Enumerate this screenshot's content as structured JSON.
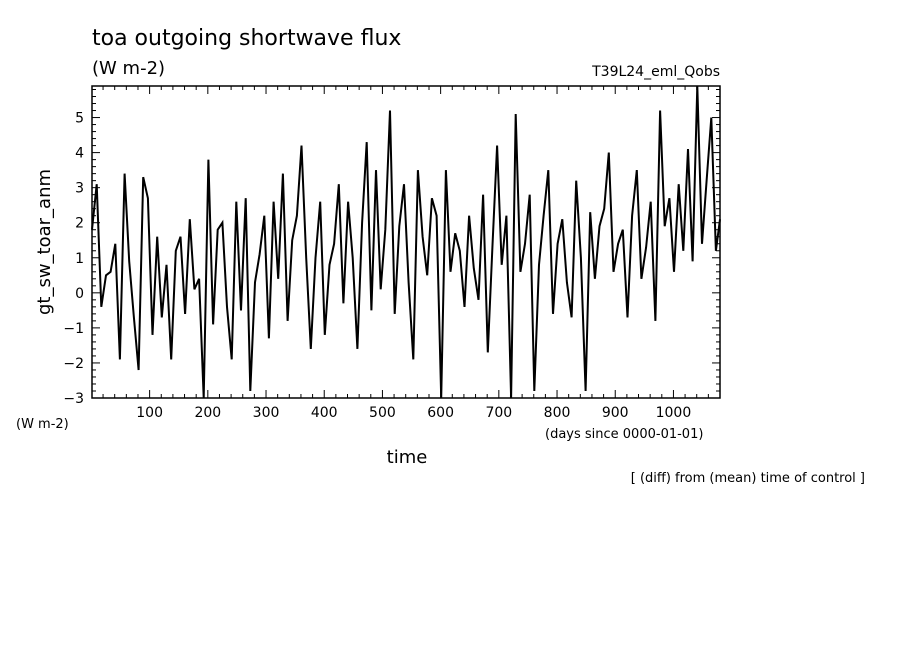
{
  "chart_data": {
    "type": "line",
    "title": "toa outgoing shortwave flux",
    "units": "(W m-2)",
    "experiment": "T39L24_eml_Qobs",
    "ylabel": "gt_sw_toar_anm",
    "ylabel_units": "(W m-2)",
    "xlabel": "time",
    "xlabel_units": "(days since 0000-01-01)",
    "footnote": "[ (diff) from (mean) time of control ]",
    "xlim": [
      1,
      1080
    ],
    "ylim": [
      -3,
      5.9
    ],
    "xticks_major": [
      100,
      200,
      300,
      400,
      500,
      600,
      700,
      800,
      900,
      1000
    ],
    "yticks_major": [
      -3,
      -2,
      -1,
      0,
      1,
      2,
      3,
      4,
      5
    ],
    "grid": false,
    "legend": "none",
    "line_color": "#000000",
    "series": [
      {
        "x": [
          1,
          9,
          17,
          25,
          33,
          41,
          49,
          57,
          65,
          73,
          81,
          89,
          97,
          105,
          113,
          121,
          129,
          137,
          145,
          153,
          161,
          169,
          177,
          185,
          193,
          201,
          209,
          217,
          225,
          233,
          241,
          249,
          257,
          265,
          273,
          281,
          289,
          297,
          305,
          313,
          321,
          329,
          337,
          345,
          353,
          361,
          369,
          377,
          385,
          393,
          401,
          409,
          417,
          425,
          433,
          441,
          449,
          457,
          465,
          473,
          481,
          489,
          497,
          505,
          513,
          521,
          529,
          537,
          545,
          553,
          561,
          569,
          577,
          585,
          593,
          601,
          609,
          617,
          625,
          633,
          641,
          649,
          657,
          665,
          673,
          681,
          689,
          697,
          705,
          713,
          721,
          729,
          737,
          745,
          753,
          761,
          769,
          777,
          785,
          793,
          801,
          809,
          817,
          825,
          833,
          841,
          849,
          857,
          865,
          873,
          881,
          889,
          897,
          905,
          913,
          921,
          929,
          937,
          945,
          953,
          961,
          969,
          977,
          985,
          993,
          1001,
          1009,
          1017,
          1025,
          1033,
          1041,
          1049,
          1057,
          1065,
          1073,
          1080
        ],
        "y": [
          1.8,
          3.1,
          -0.4,
          0.5,
          0.6,
          1.4,
          -1.9,
          3.4,
          0.9,
          -0.7,
          -2.2,
          3.3,
          2.7,
          -1.2,
          1.6,
          -0.7,
          0.8,
          -1.9,
          1.2,
          1.6,
          -0.6,
          2.1,
          0.1,
          0.4,
          -3.0,
          3.8,
          -0.9,
          1.8,
          2.0,
          -0.4,
          -1.9,
          2.6,
          -0.5,
          2.7,
          -2.8,
          0.3,
          1.1,
          2.2,
          -1.3,
          2.6,
          0.4,
          3.4,
          -0.8,
          1.5,
          2.2,
          4.2,
          1.0,
          -1.6,
          1.0,
          2.6,
          -1.2,
          0.8,
          1.4,
          3.1,
          -0.3,
          2.6,
          1.0,
          -1.6,
          2.0,
          4.3,
          -0.5,
          3.5,
          0.1,
          1.8,
          5.2,
          -0.6,
          1.9,
          3.1,
          0.3,
          -1.9,
          3.5,
          1.6,
          0.5,
          2.7,
          2.2,
          -3.0,
          3.5,
          0.6,
          1.7,
          1.2,
          -0.4,
          2.2,
          0.7,
          -0.2,
          2.8,
          -1.7,
          1.3,
          4.2,
          0.8,
          2.2,
          -3.0,
          5.1,
          0.6,
          1.4,
          2.8,
          -2.8,
          0.8,
          2.2,
          3.5,
          -0.6,
          1.4,
          2.1,
          0.3,
          -0.7,
          3.2,
          1.0,
          -2.8,
          2.3,
          0.4,
          1.9,
          2.4,
          4.0,
          0.6,
          1.4,
          1.8,
          -0.7,
          2.2,
          3.5,
          0.4,
          1.3,
          2.6,
          -0.8,
          5.2,
          1.9,
          2.7,
          0.6,
          3.1,
          1.2,
          4.1,
          0.9,
          5.9,
          1.4,
          3.2,
          5.0,
          1.2,
          2.1
        ]
      }
    ]
  }
}
